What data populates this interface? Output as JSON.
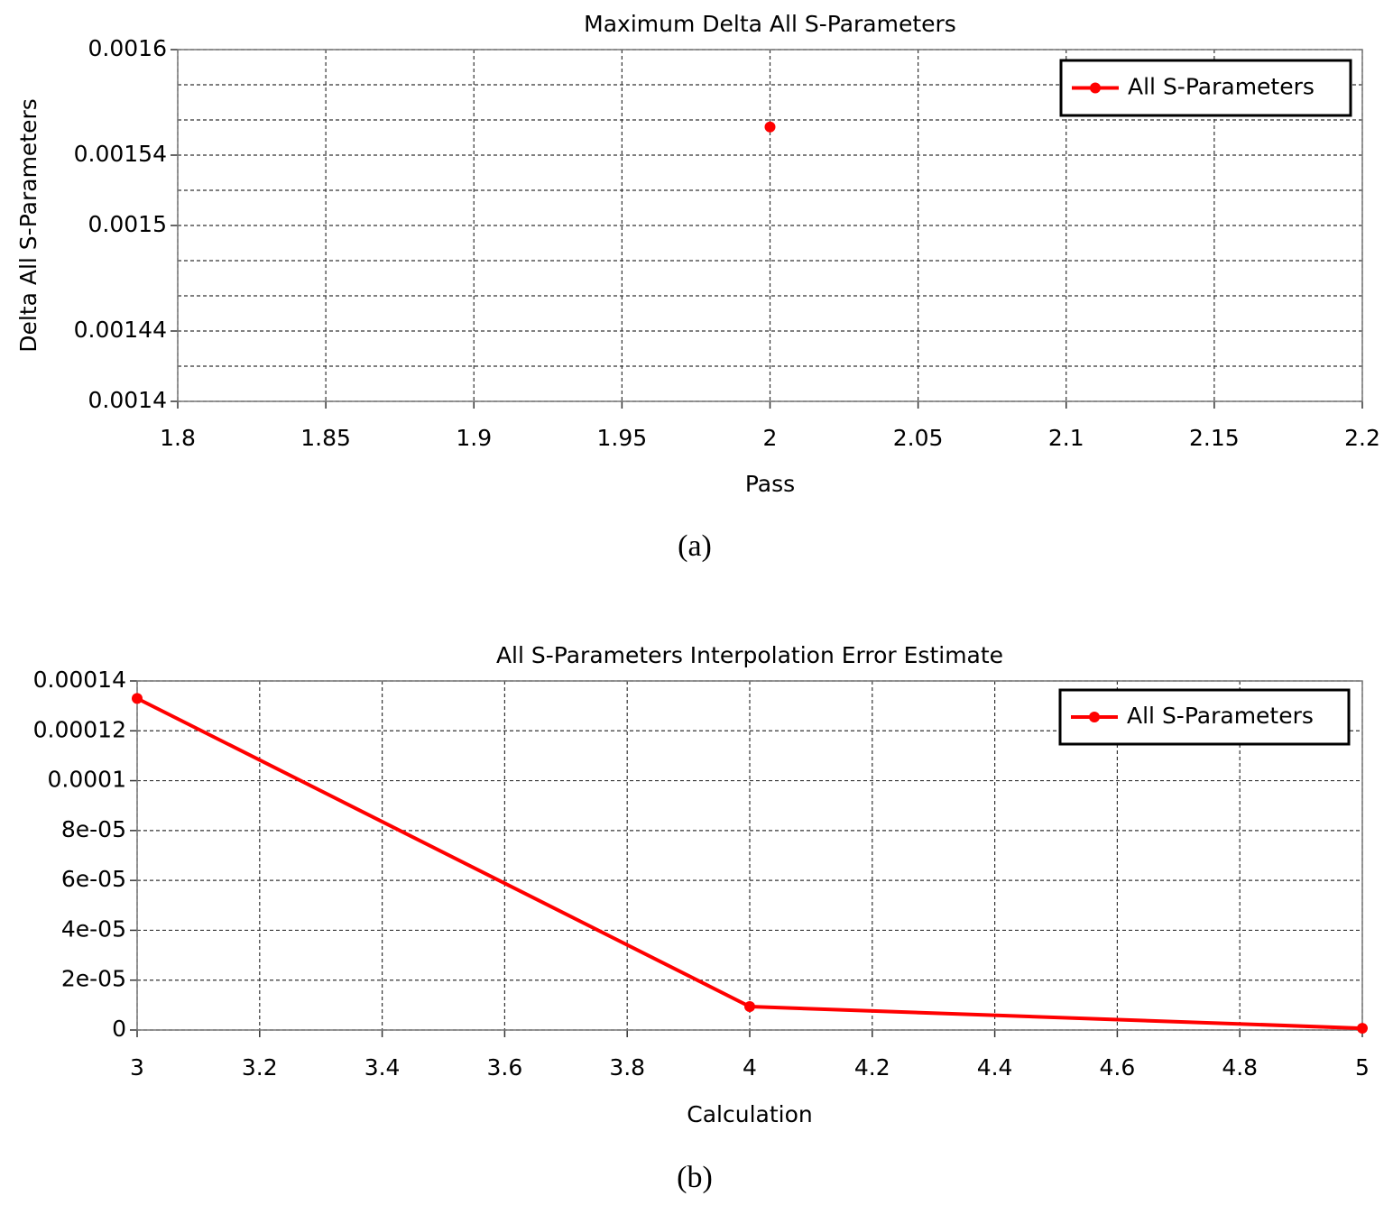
{
  "chart_data": [
    {
      "type": "line",
      "title": "Maximum Delta All S-Parameters",
      "xlabel": "Pass",
      "ylabel": "Delta All S-Parameters",
      "caption": "(a)",
      "x": [
        2
      ],
      "series": [
        {
          "name": "All S-Parameters",
          "color": "#ff0000",
          "values": [
            0.001556
          ]
        }
      ],
      "xlim": [
        1.8,
        2.2
      ],
      "xticks": [
        1.8,
        1.85,
        1.9,
        1.95,
        2,
        2.05,
        2.1,
        2.15,
        2.2
      ],
      "ylim": [
        0.0014,
        0.0016
      ],
      "yticks": [
        0.0014,
        0.00144,
        0.0015,
        0.00154,
        0.0016
      ],
      "yminor": [
        0.00142,
        0.00146,
        0.00148,
        0.00152,
        0.00156,
        0.00158
      ],
      "grid": true,
      "legend": "top-right"
    },
    {
      "type": "line",
      "title": "All S-Parameters Interpolation Error Estimate",
      "xlabel": "Calculation",
      "caption": "(b)",
      "x": [
        3,
        4,
        5
      ],
      "series": [
        {
          "name": "All S-Parameters",
          "color": "#ff0000",
          "values": [
            0.000133,
            9.4e-06,
            7e-07
          ]
        }
      ],
      "xlim": [
        3,
        5
      ],
      "xticks": [
        3,
        3.2,
        3.4,
        3.6,
        3.8,
        4,
        4.2,
        4.4,
        4.6,
        4.8,
        5
      ],
      "ylim": [
        0,
        0.00014
      ],
      "yticks": [
        0,
        {
          "value": 2e-05,
          "label": "2e-05"
        },
        {
          "value": 4e-05,
          "label": "4e-05"
        },
        {
          "value": 6e-05,
          "label": "6e-05"
        },
        {
          "value": 8e-05,
          "label": "8e-05"
        },
        0.0001,
        0.00012,
        0.00014
      ],
      "grid": true,
      "legend": "top-right"
    }
  ]
}
